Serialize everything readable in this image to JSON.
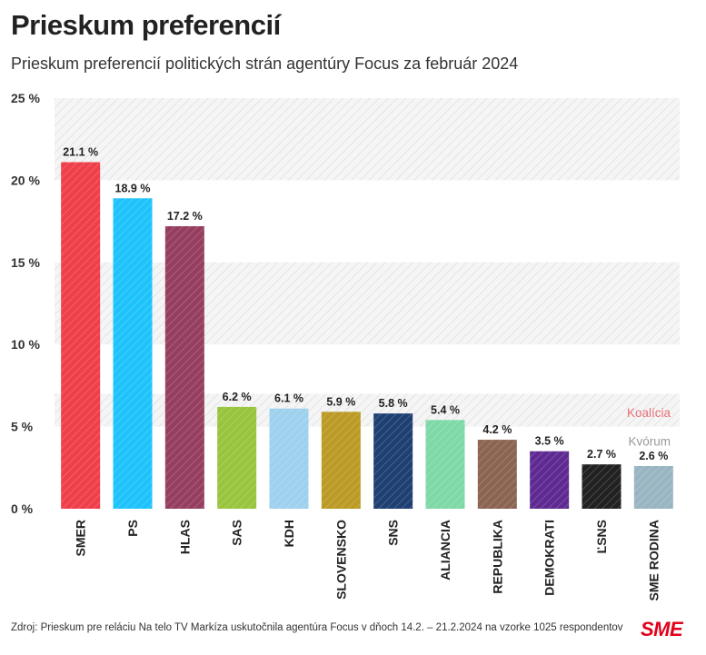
{
  "title": "Prieskum preferencií",
  "subtitle": "Prieskum preferencií politických strán agentúry Focus za február 2024",
  "footer": "Zdroj: Prieskum pre reláciu Na telo TV Markíza uskutočnila agentúra Focus v dňoch 14.2. – 21.2.2024 na vzorke 1025 respondentov",
  "brand": "SME",
  "chart_data": {
    "type": "bar",
    "categories": [
      "SMER",
      "PS",
      "HLAS",
      "SAS",
      "KDH",
      "SLOVENSKO",
      "SNS",
      "ALIANCIA",
      "REPUBLIKA",
      "DEMOKRATI",
      "ĽSNS",
      "SME RODINA"
    ],
    "values": [
      21.1,
      18.9,
      17.2,
      6.2,
      6.1,
      5.9,
      5.8,
      5.4,
      4.2,
      3.5,
      2.7,
      2.6
    ],
    "value_labels": [
      "21.1 %",
      "18.9 %",
      "17.2 %",
      "6.2 %",
      "6.1 %",
      "5.9 %",
      "5.8 %",
      "5.4 %",
      "4.2 %",
      "3.5 %",
      "2.7 %",
      "2.6 %"
    ],
    "colors": [
      "#ef3f4a",
      "#1ec3fb",
      "#963e60",
      "#98c43e",
      "#9dd1ee",
      "#bb9a25",
      "#1e3f72",
      "#7ed9a7",
      "#8b6452",
      "#5e2a91",
      "#212121",
      "#9ab5c2"
    ],
    "y_ticks": [
      0,
      5,
      10,
      15,
      20,
      25
    ],
    "y_tick_labels": [
      "0 %",
      "5 %",
      "10 %",
      "15 %",
      "20 %",
      "25 %"
    ],
    "ylim": [
      0,
      25
    ],
    "threshold_bands": [
      {
        "label": "Koalícia",
        "from": 5,
        "to": 7,
        "color": "#e8707a"
      },
      {
        "label": "Kvórum",
        "from": 0,
        "to": 5,
        "color": "#999999"
      }
    ],
    "hatched_rows": [
      [
        5,
        7
      ],
      [
        10,
        15
      ],
      [
        20,
        25
      ]
    ],
    "grid": false,
    "legend": "none"
  }
}
